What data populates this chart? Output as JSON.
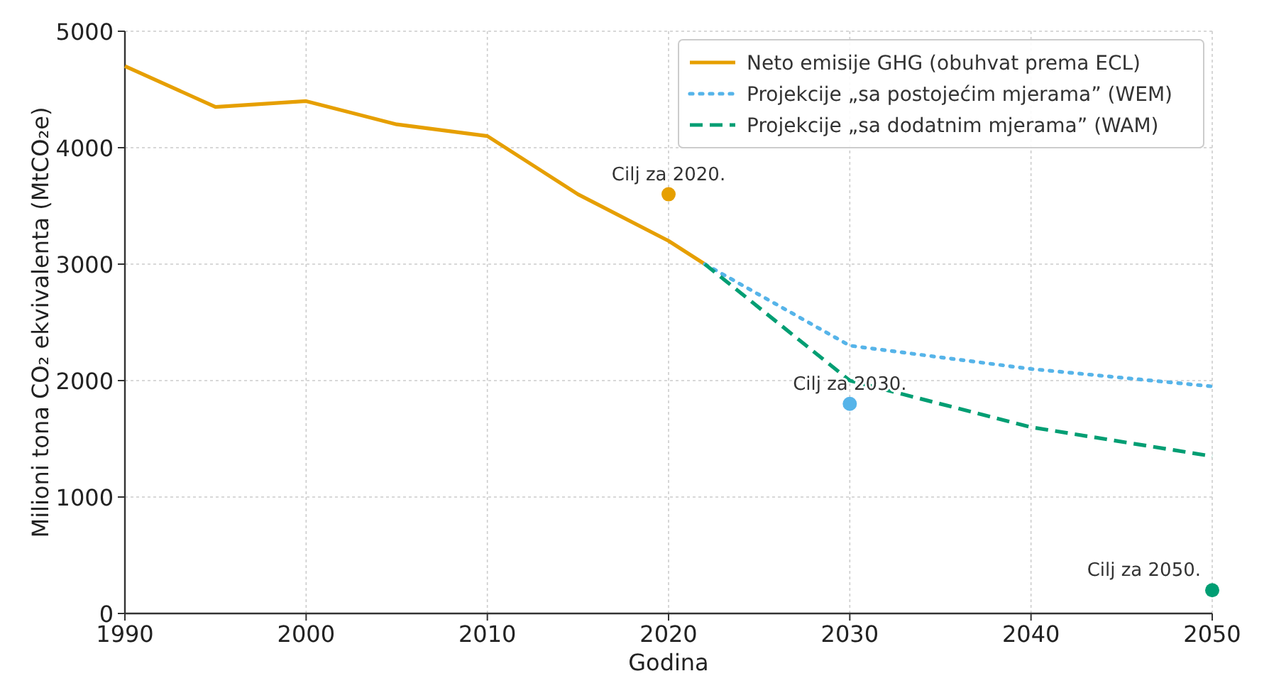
{
  "chart_data": {
    "type": "line",
    "xlabel": "Godina",
    "ylabel": "Milioni tona CO₂ ekvivalenta (MtCO₂e)",
    "xlim": [
      1990,
      2050
    ],
    "xticks": [
      1990,
      2000,
      2010,
      2020,
      2030,
      2040,
      2050
    ],
    "ylim": [
      0,
      5000
    ],
    "yticks": [
      0,
      1000,
      2000,
      3000,
      4000,
      5000
    ],
    "grid": true,
    "legend": "top right",
    "series": [
      {
        "name": "Neto emisije GHG (obuhvat prema ECL)",
        "color": "#e69f00",
        "line_style": "solid",
        "x": [
          1990,
          1995,
          2000,
          2005,
          2010,
          2015,
          2020,
          2022
        ],
        "values": [
          4700,
          4350,
          4400,
          4200,
          4100,
          3600,
          3200,
          3000
        ]
      },
      {
        "name": "Projekcije „sa postojećim mjerama” (WEM)",
        "color": "#56b4e9",
        "line_style": "dotted",
        "x": [
          2022,
          2030,
          2040,
          2050
        ],
        "values": [
          3000,
          2300,
          2100,
          1950
        ]
      },
      {
        "name": "Projekcije „sa dodatnim mjerama” (WAM)",
        "color": "#009e73",
        "line_style": "dashed",
        "x": [
          2022,
          2030,
          2040,
          2050
        ],
        "values": [
          3000,
          2000,
          1600,
          1350
        ]
      },
      {
        "type": "scatter",
        "color": "#e69f00",
        "marker": "circle",
        "x": [
          2020
        ],
        "values": [
          3600
        ]
      },
      {
        "type": "scatter",
        "color": "#56b4e9",
        "marker": "circle",
        "x": [
          2030
        ],
        "values": [
          1800
        ]
      },
      {
        "type": "scatter",
        "color": "#009e73",
        "marker": "circle",
        "x": [
          2050
        ],
        "values": [
          200
        ]
      }
    ],
    "annotations": [
      {
        "text": "Cilj za 2020.",
        "x": 2020,
        "y": 3600
      },
      {
        "text": "Cilj za 2030.",
        "x": 2030,
        "y": 1800
      },
      {
        "text": "Cilj za 2050.",
        "x": 2050,
        "y": 200
      }
    ]
  }
}
